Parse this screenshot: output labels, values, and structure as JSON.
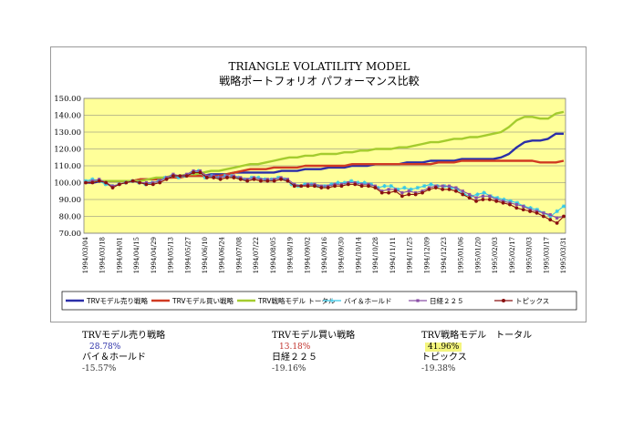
{
  "chart_data": {
    "type": "line",
    "title": "TRIANGLE VOLATILITY MODEL",
    "subtitle": "戦略ポートフォリオ パフォーマンス比較",
    "ylim": [
      70,
      150
    ],
    "yticks": [
      "150.00",
      "140.00",
      "130.00",
      "120.00",
      "110.00",
      "100.00",
      "90.00",
      "80.00",
      "70.00"
    ],
    "x_labels": [
      "1994/03/04",
      "1994/03/18",
      "1994/04/01",
      "1994/04/15",
      "1994/04/29",
      "1994/05/13",
      "1994/05/27",
      "1994/06/10",
      "1994/06/24",
      "1994/07/08",
      "1994/07/22",
      "1994/08/05",
      "1994/08/19",
      "1994/09/02",
      "1994/09/16",
      "1994/09/30",
      "1994/10/14",
      "1994/10/28",
      "1994/11/11",
      "1994/11/25",
      "1994/12/09",
      "1994/12/23",
      "1995/01/06",
      "1995/01/20",
      "1995/02/03",
      "1995/02/17",
      "1995/03/03",
      "1995/03/17",
      "1995/03/31"
    ],
    "plot_background": "#ffff99",
    "grid": true,
    "legend_position": "bottom",
    "series": [
      {
        "name": "TRVモデル売り戦略",
        "color": "#2b2fa8",
        "values": [
          100,
          100,
          101,
          101,
          101,
          101,
          101,
          102,
          102,
          102,
          103,
          103,
          104,
          104,
          104,
          104,
          105,
          105,
          105,
          106,
          106,
          106,
          106,
          106,
          106,
          107,
          107,
          107,
          108,
          108,
          108,
          109,
          109,
          109,
          110,
          110,
          110,
          111,
          111,
          111,
          111,
          112,
          112,
          112,
          113,
          113,
          113,
          113,
          114,
          114,
          114,
          114,
          114,
          115,
          117,
          121,
          124,
          125,
          125,
          126,
          129,
          129
        ]
      },
      {
        "name": "TRVモデル買い戦略",
        "color": "#d03a22",
        "values": [
          100,
          101,
          101,
          101,
          101,
          101,
          101,
          102,
          102,
          102,
          103,
          103,
          103,
          104,
          104,
          104,
          104,
          104,
          105,
          106,
          107,
          108,
          108,
          108,
          109,
          109,
          109,
          109,
          110,
          110,
          110,
          110,
          110,
          110,
          111,
          111,
          111,
          111,
          111,
          111,
          111,
          111,
          111,
          111,
          111,
          112,
          112,
          112,
          113,
          113,
          113,
          113,
          113,
          113,
          113,
          113,
          113,
          113,
          112,
          112,
          112,
          113
        ]
      },
      {
        "name": "TRV戦略モデル トータル",
        "color": "#a4cc2e",
        "values": [
          100,
          101,
          101,
          101,
          101,
          101,
          101,
          101,
          102,
          103,
          103,
          104,
          104,
          105,
          105,
          106,
          107,
          107,
          108,
          109,
          110,
          111,
          111,
          112,
          113,
          114,
          115,
          115,
          116,
          116,
          117,
          117,
          117,
          118,
          118,
          119,
          119,
          120,
          120,
          120,
          121,
          121,
          122,
          123,
          124,
          124,
          125,
          126,
          126,
          127,
          127,
          128,
          129,
          130,
          133,
          137,
          139,
          139,
          138,
          138,
          141,
          142
        ]
      },
      {
        "name": "バイ＆ホールド",
        "color": "#35c8e8",
        "values": [
          101,
          102,
          101,
          99,
          98,
          99,
          100,
          101,
          100,
          99,
          100,
          101,
          103,
          104,
          103,
          104,
          106,
          107,
          103,
          104,
          103,
          104,
          104,
          103,
          102,
          103,
          103,
          102,
          102,
          103,
          102,
          99,
          98,
          99,
          99,
          98,
          98,
          99,
          100,
          100,
          101,
          100,
          100,
          99,
          97,
          98,
          98,
          96,
          97,
          96,
          97,
          98,
          99,
          98,
          98,
          97,
          96,
          93,
          92,
          93,
          94,
          92,
          91,
          90,
          89,
          88,
          86,
          85,
          84,
          82,
          80,
          83,
          86
        ]
      },
      {
        "name": "日経２２５",
        "color": "#8a4fa6",
        "values": [
          100,
          101,
          102,
          100,
          98,
          99,
          100,
          101,
          100,
          100,
          100,
          101,
          103,
          105,
          104,
          105,
          107,
          107,
          104,
          104,
          103,
          104,
          104,
          103,
          102,
          103,
          102,
          102,
          102,
          103,
          102,
          99,
          98,
          99,
          99,
          98,
          98,
          99,
          99,
          100,
          100,
          99,
          99,
          98,
          95,
          96,
          96,
          94,
          95,
          94,
          95,
          97,
          98,
          98,
          98,
          97,
          95,
          93,
          91,
          92,
          92,
          90,
          89,
          88,
          87,
          86,
          84,
          83,
          82,
          81,
          79,
          80
        ]
      },
      {
        "name": "トピックス",
        "color": "#8a1010",
        "values": [
          100,
          100,
          101,
          100,
          97,
          99,
          100,
          101,
          100,
          99,
          99,
          100,
          102,
          104,
          104,
          104,
          106,
          106,
          103,
          103,
          102,
          103,
          103,
          102,
          101,
          102,
          101,
          101,
          101,
          102,
          101,
          98,
          98,
          98,
          98,
          97,
          97,
          98,
          98,
          99,
          99,
          98,
          98,
          97,
          94,
          94,
          95,
          92,
          93,
          93,
          94,
          96,
          97,
          96,
          96,
          95,
          93,
          91,
          89,
          90,
          90,
          89,
          88,
          87,
          85,
          84,
          83,
          82,
          80,
          78,
          76,
          80
        ]
      }
    ]
  },
  "summary": [
    {
      "name": "TRVモデル売り戦略",
      "value": "28.78%"
    },
    {
      "name": "TRVモデル買い戦略",
      "value": "13.18%"
    },
    {
      "name": "TRV戦略モデル　トータル",
      "value": "41.96%"
    },
    {
      "name": "バイ＆ホールド",
      "value": "-15.57%"
    },
    {
      "name": "日経２２５",
      "value": "-19.16%"
    },
    {
      "name": "トピックス",
      "value": "-19.38%"
    }
  ]
}
